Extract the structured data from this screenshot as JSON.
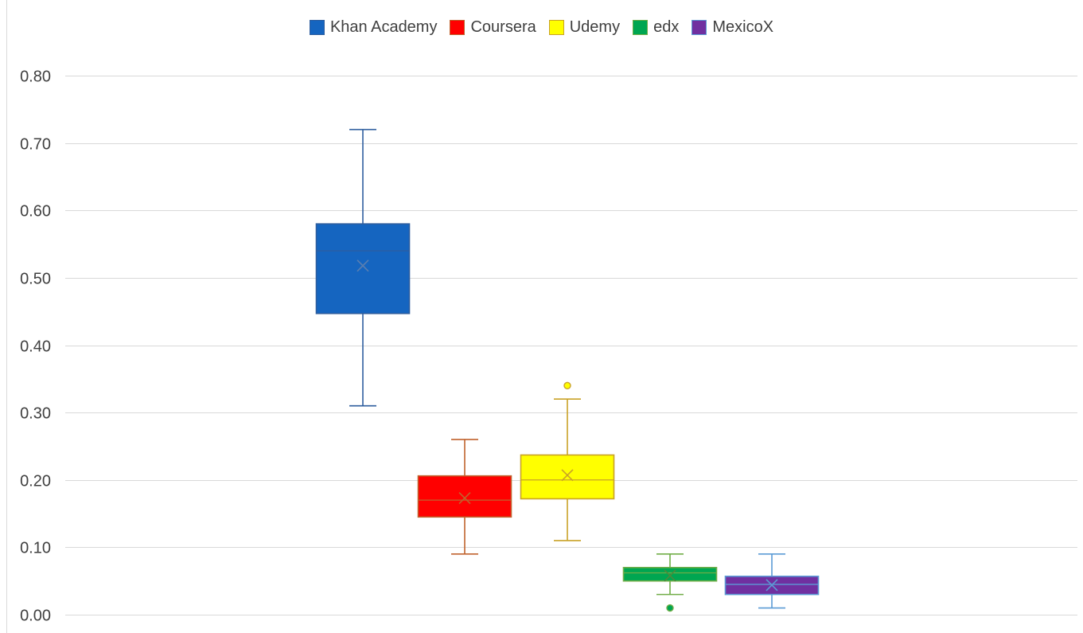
{
  "chart_data": {
    "type": "box",
    "title": "",
    "xlabel": "",
    "ylabel": "",
    "ylim": [
      0,
      0.8
    ],
    "y_ticks": [
      "0.00",
      "0.10",
      "0.20",
      "0.30",
      "0.40",
      "0.50",
      "0.60",
      "0.70",
      "0.80"
    ],
    "grid": "horizontal",
    "legend_position": "top",
    "series": [
      {
        "name": "Khan Academy",
        "min": 0.31,
        "q1": 0.447,
        "median": 0.54,
        "q3": 0.58,
        "max": 0.72,
        "mean": 0.518,
        "outliers": [],
        "color": "#1565C0",
        "edge": "#2E5E9E",
        "marker": "#5B7FB0"
      },
      {
        "name": "Coursera",
        "min": 0.09,
        "q1": 0.145,
        "median": 0.17,
        "q3": 0.206,
        "max": 0.26,
        "mean": 0.173,
        "outliers": [],
        "color": "#FF0000",
        "edge": "#C0622D",
        "marker": "#C0622D"
      },
      {
        "name": "Udemy",
        "min": 0.11,
        "q1": 0.172,
        "median": 0.2,
        "q3": 0.237,
        "max": 0.32,
        "mean": 0.207,
        "outliers": [
          0.34
        ],
        "color": "#FFFF00",
        "edge": "#C9A227",
        "marker": "#C9A227"
      },
      {
        "name": "edx",
        "min": 0.03,
        "q1": 0.05,
        "median": 0.062,
        "q3": 0.07,
        "max": 0.09,
        "mean": 0.058,
        "outliers": [
          0.01
        ],
        "color": "#00A651",
        "edge": "#70AD47",
        "marker": "#4E8A3A"
      },
      {
        "name": "MexicoX",
        "min": 0.01,
        "q1": 0.03,
        "median": 0.045,
        "q3": 0.057,
        "max": 0.09,
        "mean": 0.044,
        "outliers": [],
        "color": "#7030A0",
        "edge": "#5B9BD5",
        "marker": "#5B9BD5"
      }
    ]
  }
}
